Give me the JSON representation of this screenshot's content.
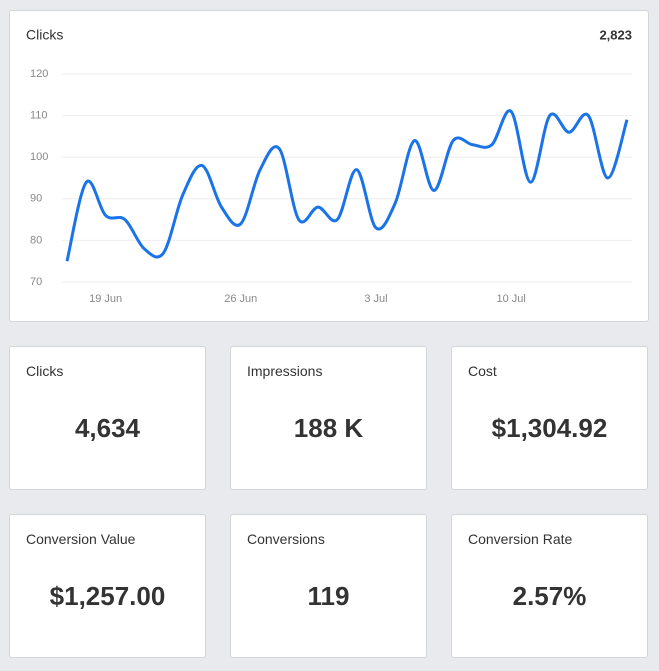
{
  "chart_data": {
    "type": "line",
    "title": "Clicks",
    "total": "2,823",
    "categories": [
      null,
      null,
      "19 Jun",
      null,
      null,
      null,
      null,
      null,
      null,
      "26 Jun",
      null,
      null,
      null,
      null,
      null,
      null,
      "3 Jul",
      null,
      null,
      null,
      null,
      null,
      null,
      "10 Jul",
      null,
      null,
      null,
      null,
      null,
      null
    ],
    "series": [
      {
        "name": "Clicks",
        "color": "#1a73e8",
        "values": [
          75,
          94,
          86,
          85,
          78,
          77,
          91,
          98,
          88,
          84,
          97,
          102,
          85,
          88,
          85,
          97,
          83,
          89,
          104,
          92,
          104,
          103,
          103,
          111,
          94,
          110,
          106,
          110,
          95,
          109
        ]
      }
    ],
    "ylim": [
      70,
      120
    ],
    "yticks": [
      70,
      80,
      90,
      100,
      110,
      120
    ],
    "grid": true
  },
  "stats": [
    {
      "label": "Clicks",
      "value": "4,634"
    },
    {
      "label": "Impressions",
      "value": "188 K"
    },
    {
      "label": "Cost",
      "value": "$1,304.92"
    },
    {
      "label": "Conversion Value",
      "value": "$1,257.00"
    },
    {
      "label": "Conversions",
      "value": "119"
    },
    {
      "label": "Conversion Rate",
      "value": "2.57%"
    }
  ]
}
